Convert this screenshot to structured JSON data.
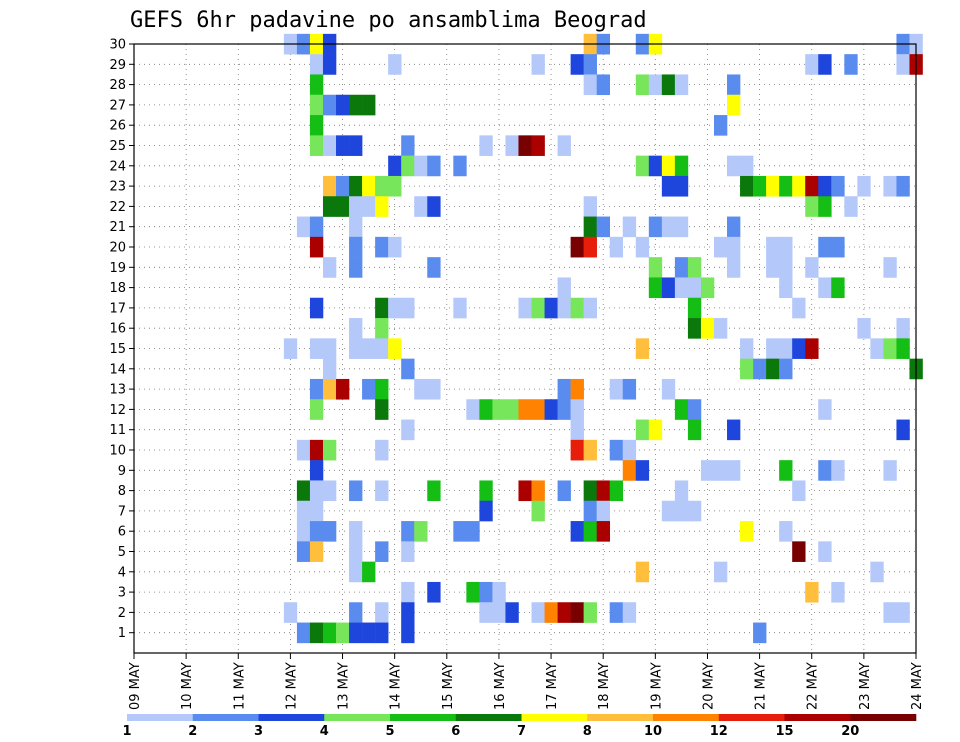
{
  "chart_data": {
    "type": "heatmap",
    "title": "GEFS 6hr padavine po ansamblima Beograd",
    "xlabel": "",
    "ylabel": "",
    "x_ticks": [
      "09 MAY",
      "10 MAY",
      "11 MAY",
      "12 MAY",
      "13 MAY",
      "14 MAY",
      "15 MAY",
      "16 MAY",
      "17 MAY",
      "18 MAY",
      "19 MAY",
      "20 MAY",
      "21 MAY",
      "22 MAY",
      "23 MAY",
      "24 MAY"
    ],
    "y_ticks": [
      "1",
      "2",
      "3",
      "4",
      "5",
      "6",
      "7",
      "8",
      "9",
      "10",
      "11",
      "12",
      "13",
      "14",
      "15",
      "16",
      "17",
      "18",
      "19",
      "20",
      "21",
      "22",
      "23",
      "24",
      "25",
      "26",
      "27",
      "28",
      "29",
      "30"
    ],
    "y_range": [
      0,
      30
    ],
    "grid": true,
    "legend": {
      "labels": [
        "1",
        "2",
        "3",
        "4",
        "5",
        "6",
        "7",
        "8",
        "10",
        "12",
        "15",
        "20"
      ],
      "colors": [
        "#b4c8fa",
        "#5a8cf0",
        "#1e46dc",
        "#78e65a",
        "#14be14",
        "#0a780a",
        "#ffff00",
        "#ffbe3c",
        "#ff8200",
        "#e61e0a",
        "#aa0000",
        "#780000"
      ]
    },
    "cells": [
      [
        30,
        12.0,
        1
      ],
      [
        30,
        12.25,
        2
      ],
      [
        30,
        12.5,
        7
      ],
      [
        30,
        12.75,
        3
      ],
      [
        30,
        17.75,
        8
      ],
      [
        30,
        18,
        2
      ],
      [
        30,
        18.75,
        2
      ],
      [
        30,
        19,
        7
      ],
      [
        30,
        23.75,
        2
      ],
      [
        30,
        24,
        1
      ],
      [
        29,
        12.5,
        1
      ],
      [
        29,
        12.75,
        3
      ],
      [
        29,
        14,
        1
      ],
      [
        29,
        16.75,
        1
      ],
      [
        29,
        17.5,
        3
      ],
      [
        29,
        17.75,
        2
      ],
      [
        29,
        22,
        1
      ],
      [
        29,
        22.25,
        3
      ],
      [
        29,
        22.75,
        2
      ],
      [
        29,
        23.75,
        1
      ],
      [
        29,
        24,
        11
      ],
      [
        28,
        12.5,
        5
      ],
      [
        28,
        17.75,
        1
      ],
      [
        28,
        18,
        2
      ],
      [
        28,
        18.75,
        4
      ],
      [
        28,
        19,
        1
      ],
      [
        28,
        19.25,
        6
      ],
      [
        28,
        19.5,
        1
      ],
      [
        28,
        20.5,
        2
      ],
      [
        27,
        12.5,
        4
      ],
      [
        27,
        12.75,
        2
      ],
      [
        27,
        13,
        3
      ],
      [
        27,
        13.25,
        6
      ],
      [
        27,
        13.5,
        6
      ],
      [
        27,
        20.5,
        7
      ],
      [
        26,
        12.5,
        5
      ],
      [
        26,
        20.25,
        2
      ],
      [
        25,
        12.5,
        4
      ],
      [
        25,
        12.75,
        1
      ],
      [
        25,
        13,
        3
      ],
      [
        25,
        13.25,
        3
      ],
      [
        25,
        14.25,
        2
      ],
      [
        25,
        15.75,
        1
      ],
      [
        25,
        16.25,
        1
      ],
      [
        25,
        16.5,
        12
      ],
      [
        25,
        16.75,
        11
      ],
      [
        25,
        17.25,
        1
      ],
      [
        24,
        14,
        3
      ],
      [
        24,
        14.25,
        4
      ],
      [
        24,
        14.5,
        1
      ],
      [
        24,
        14.75,
        2
      ],
      [
        24,
        15.25,
        2
      ],
      [
        24,
        18.75,
        4
      ],
      [
        24,
        19,
        3
      ],
      [
        24,
        19.25,
        7
      ],
      [
        24,
        19.5,
        5
      ],
      [
        24,
        20.5,
        1
      ],
      [
        24,
        20.75,
        1
      ],
      [
        23,
        12.75,
        8
      ],
      [
        23,
        13,
        2
      ],
      [
        23,
        13.25,
        6
      ],
      [
        23,
        13.5,
        7
      ],
      [
        23,
        13.75,
        4
      ],
      [
        23,
        14,
        4
      ],
      [
        23,
        19.25,
        3
      ],
      [
        23,
        19.5,
        3
      ],
      [
        23,
        20.75,
        6
      ],
      [
        23,
        21.0,
        5
      ],
      [
        23,
        21.25,
        7
      ],
      [
        23,
        21.5,
        5
      ],
      [
        23,
        21.75,
        7
      ],
      [
        23,
        22,
        11
      ],
      [
        23,
        22.25,
        3
      ],
      [
        23,
        22.5,
        2
      ],
      [
        23,
        23,
        1
      ],
      [
        23,
        23.5,
        1
      ],
      [
        23,
        23.75,
        2
      ],
      [
        22,
        12.75,
        6
      ],
      [
        22,
        13,
        6
      ],
      [
        22,
        13.25,
        1
      ],
      [
        22,
        13.5,
        1
      ],
      [
        22,
        13.75,
        7
      ],
      [
        22,
        14.5,
        1
      ],
      [
        22,
        14.75,
        3
      ],
      [
        22,
        17.75,
        1
      ],
      [
        22,
        22,
        4
      ],
      [
        22,
        22.25,
        5
      ],
      [
        22,
        22.75,
        1
      ],
      [
        21,
        12.25,
        1
      ],
      [
        21,
        12.5,
        2
      ],
      [
        21,
        13.25,
        1
      ],
      [
        21,
        17.75,
        6
      ],
      [
        21,
        18,
        2
      ],
      [
        21,
        18.5,
        1
      ],
      [
        21,
        19,
        2
      ],
      [
        21,
        19.25,
        1
      ],
      [
        21,
        19.5,
        1
      ],
      [
        21,
        20.5,
        2
      ],
      [
        20,
        12.5,
        11
      ],
      [
        20,
        13.25,
        2
      ],
      [
        20,
        13.75,
        2
      ],
      [
        20,
        14,
        1
      ],
      [
        20,
        17.5,
        12
      ],
      [
        20,
        17.75,
        10
      ],
      [
        20,
        18.25,
        1
      ],
      [
        20,
        18.75,
        1
      ],
      [
        20,
        20.25,
        1
      ],
      [
        20,
        20.5,
        1
      ],
      [
        20,
        21.25,
        1
      ],
      [
        20,
        21.5,
        1
      ],
      [
        20,
        22.25,
        2
      ],
      [
        20,
        22.5,
        2
      ],
      [
        19,
        12.75,
        1
      ],
      [
        19,
        13.25,
        2
      ],
      [
        19,
        14.75,
        2
      ],
      [
        19,
        19,
        4
      ],
      [
        19,
        19.5,
        2
      ],
      [
        19,
        19.75,
        4
      ],
      [
        19,
        20.5,
        1
      ],
      [
        19,
        21.25,
        1
      ],
      [
        19,
        21.5,
        1
      ],
      [
        19,
        22,
        1
      ],
      [
        19,
        23.5,
        1
      ],
      [
        18,
        17.25,
        1
      ],
      [
        18,
        19,
        5
      ],
      [
        18,
        19.25,
        3
      ],
      [
        18,
        19.5,
        1
      ],
      [
        18,
        19.75,
        1
      ],
      [
        18,
        20,
        4
      ],
      [
        18,
        21.5,
        1
      ],
      [
        18,
        22.25,
        1
      ],
      [
        18,
        22.5,
        5
      ],
      [
        17,
        12.5,
        3
      ],
      [
        17,
        13.75,
        6
      ],
      [
        17,
        14,
        1
      ],
      [
        17,
        14.25,
        1
      ],
      [
        17,
        15.25,
        1
      ],
      [
        17,
        16.5,
        1
      ],
      [
        17,
        16.75,
        4
      ],
      [
        17,
        17,
        3
      ],
      [
        17,
        17.25,
        1
      ],
      [
        17,
        17.5,
        4
      ],
      [
        17,
        17.75,
        1
      ],
      [
        17,
        19.75,
        5
      ],
      [
        17,
        21.75,
        1
      ],
      [
        16,
        13.25,
        1
      ],
      [
        16,
        13.75,
        4
      ],
      [
        16,
        19.75,
        6
      ],
      [
        16,
        20,
        7
      ],
      [
        16,
        20.25,
        1
      ],
      [
        16,
        23,
        1
      ],
      [
        16,
        23.75,
        1
      ],
      [
        15,
        12,
        1
      ],
      [
        15,
        12.5,
        1
      ],
      [
        15,
        12.75,
        1
      ],
      [
        15,
        13.25,
        1
      ],
      [
        15,
        13.5,
        1
      ],
      [
        15,
        13.75,
        1
      ],
      [
        15,
        14,
        7
      ],
      [
        15,
        18.75,
        8
      ],
      [
        15,
        20.75,
        1
      ],
      [
        15,
        21.25,
        1
      ],
      [
        15,
        21.5,
        1
      ],
      [
        15,
        21.75,
        3
      ],
      [
        15,
        22,
        11
      ],
      [
        15,
        23.25,
        1
      ],
      [
        15,
        23.5,
        4
      ],
      [
        15,
        23.75,
        5
      ],
      [
        14,
        12.75,
        1
      ],
      [
        14,
        14.25,
        2
      ],
      [
        14,
        20.75,
        4
      ],
      [
        14,
        21,
        2
      ],
      [
        14,
        21.25,
        6
      ],
      [
        14,
        21.5,
        2
      ],
      [
        14,
        24,
        6
      ],
      [
        13,
        12.5,
        2
      ],
      [
        13,
        12.75,
        8
      ],
      [
        13,
        13,
        11
      ],
      [
        13,
        13.5,
        2
      ],
      [
        13,
        13.75,
        5
      ],
      [
        13,
        14.5,
        1
      ],
      [
        13,
        14.75,
        1
      ],
      [
        13,
        17.25,
        2
      ],
      [
        13,
        17.5,
        9
      ],
      [
        13,
        18.25,
        1
      ],
      [
        13,
        18.5,
        2
      ],
      [
        13,
        19.25,
        1
      ],
      [
        12,
        12.5,
        4
      ],
      [
        12,
        13.75,
        6
      ],
      [
        12,
        15.5,
        1
      ],
      [
        12,
        15.75,
        5
      ],
      [
        12,
        16,
        4
      ],
      [
        12,
        16.25,
        4
      ],
      [
        12,
        16.5,
        9
      ],
      [
        12,
        16.75,
        9
      ],
      [
        12,
        17,
        3
      ],
      [
        12,
        17.25,
        2
      ],
      [
        12,
        17.5,
        1
      ],
      [
        12,
        19.5,
        5
      ],
      [
        12,
        19.75,
        2
      ],
      [
        12,
        22.25,
        1
      ],
      [
        11,
        14.25,
        1
      ],
      [
        11,
        17.5,
        1
      ],
      [
        11,
        18.75,
        4
      ],
      [
        11,
        19,
        7
      ],
      [
        11,
        19.75,
        5
      ],
      [
        11,
        20.5,
        3
      ],
      [
        11,
        23.75,
        3
      ],
      [
        10,
        12.25,
        1
      ],
      [
        10,
        12.5,
        11
      ],
      [
        10,
        12.75,
        4
      ],
      [
        10,
        13.75,
        1
      ],
      [
        10,
        17.5,
        10
      ],
      [
        10,
        17.75,
        8
      ],
      [
        10,
        18.25,
        2
      ],
      [
        10,
        18.5,
        1
      ],
      [
        9,
        12.5,
        3
      ],
      [
        9,
        18.5,
        9
      ],
      [
        9,
        18.75,
        3
      ],
      [
        9,
        20,
        1
      ],
      [
        9,
        20.25,
        1
      ],
      [
        9,
        20.5,
        1
      ],
      [
        9,
        21.5,
        5
      ],
      [
        9,
        22.25,
        2
      ],
      [
        9,
        22.5,
        1
      ],
      [
        9,
        23.5,
        1
      ],
      [
        8,
        12.25,
        6
      ],
      [
        8,
        12.5,
        1
      ],
      [
        8,
        12.75,
        1
      ],
      [
        8,
        13.25,
        2
      ],
      [
        8,
        13.75,
        1
      ],
      [
        8,
        14.75,
        5
      ],
      [
        8,
        15.75,
        5
      ],
      [
        8,
        16.5,
        11
      ],
      [
        8,
        16.75,
        9
      ],
      [
        8,
        17.25,
        2
      ],
      [
        8,
        17.75,
        6
      ],
      [
        8,
        18,
        11
      ],
      [
        8,
        18.25,
        5
      ],
      [
        8,
        19.5,
        1
      ],
      [
        8,
        21.75,
        1
      ],
      [
        7,
        12.25,
        1
      ],
      [
        7,
        12.5,
        1
      ],
      [
        7,
        15.75,
        3
      ],
      [
        7,
        16.75,
        4
      ],
      [
        7,
        17.75,
        2
      ],
      [
        7,
        18,
        1
      ],
      [
        7,
        19.25,
        1
      ],
      [
        7,
        19.5,
        1
      ],
      [
        7,
        19.75,
        1
      ],
      [
        6,
        12.25,
        1
      ],
      [
        6,
        12.5,
        2
      ],
      [
        6,
        12.75,
        2
      ],
      [
        6,
        13.25,
        1
      ],
      [
        6,
        14.25,
        2
      ],
      [
        6,
        14.5,
        4
      ],
      [
        6,
        15.25,
        2
      ],
      [
        6,
        15.5,
        2
      ],
      [
        6,
        17.5,
        3
      ],
      [
        6,
        17.75,
        5
      ],
      [
        6,
        18.0,
        11
      ],
      [
        6,
        20.75,
        7
      ],
      [
        6,
        21.5,
        1
      ],
      [
        5,
        12.25,
        2
      ],
      [
        5,
        12.5,
        8
      ],
      [
        5,
        13.25,
        1
      ],
      [
        5,
        13.75,
        2
      ],
      [
        5,
        14.25,
        1
      ],
      [
        5,
        21.75,
        12
      ],
      [
        5,
        22.25,
        1
      ],
      [
        4,
        13.25,
        1
      ],
      [
        4,
        13.5,
        5
      ],
      [
        4,
        18.75,
        8
      ],
      [
        4,
        20.25,
        1
      ],
      [
        4,
        23.25,
        1
      ],
      [
        3,
        14.25,
        1
      ],
      [
        3,
        14.75,
        3
      ],
      [
        3,
        15.5,
        5
      ],
      [
        3,
        15.75,
        2
      ],
      [
        3,
        16,
        1
      ],
      [
        3,
        22,
        8
      ],
      [
        3,
        22.5,
        1
      ],
      [
        2,
        12.0,
        1
      ],
      [
        2,
        13.25,
        2
      ],
      [
        2,
        13.75,
        1
      ],
      [
        2,
        14.25,
        3
      ],
      [
        2,
        15.75,
        1
      ],
      [
        2,
        16,
        1
      ],
      [
        2,
        16.25,
        3
      ],
      [
        2,
        16.75,
        1
      ],
      [
        2,
        17.0,
        9
      ],
      [
        2,
        17.25,
        11
      ],
      [
        2,
        17.5,
        12
      ],
      [
        2,
        17.75,
        4
      ],
      [
        2,
        18.25,
        2
      ],
      [
        2,
        18.5,
        1
      ],
      [
        2,
        23.5,
        1
      ],
      [
        2,
        23.75,
        1
      ],
      [
        1,
        12.25,
        2
      ],
      [
        1,
        12.5,
        6
      ],
      [
        1,
        12.75,
        5
      ],
      [
        1,
        13,
        4
      ],
      [
        1,
        13.25,
        3
      ],
      [
        1,
        13.5,
        3
      ],
      [
        1,
        13.75,
        3
      ],
      [
        1,
        14.25,
        3
      ],
      [
        1,
        21.0,
        2
      ]
    ]
  }
}
